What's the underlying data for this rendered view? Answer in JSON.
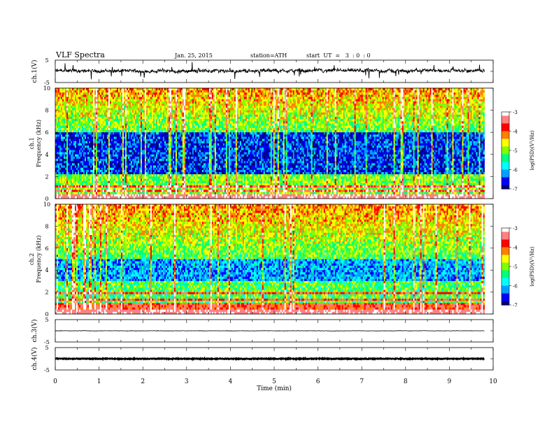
{
  "header": {
    "title": "VLF  Spectra",
    "date": "Jan. 25, 2015",
    "station": "station=ATH",
    "start": "start  UT  =   3  : 0  : 0"
  },
  "colors": {
    "spectrogram_scale": [
      "#000080",
      "#0000ff",
      "#00a0ff",
      "#00ffff",
      "#00ff80",
      "#80ff00",
      "#ffff00",
      "#ff8000",
      "#ff0000",
      "#ff8080",
      "#ffffff"
    ],
    "trace": "#000000"
  },
  "chart_data": [
    {
      "type": "line",
      "name_panel": "ch1-waveform",
      "ylabel": "ch.1(V)",
      "yticks": [
        "5",
        "-5"
      ],
      "ylim": [
        -5,
        5
      ],
      "xlim": [
        0,
        10
      ],
      "data_end_min": 9.8,
      "baseline": 0.2,
      "amplitude": 1.2
    },
    {
      "type": "heatmap",
      "name_panel": "ch1-spectrogram",
      "ylabel": "ch.1\nFrequency (kHz)",
      "ylabel_line1": "ch.1",
      "ylabel_line2": "Frequency (kHz)",
      "yticks": [
        "0",
        "2",
        "4",
        "6",
        "8",
        "10"
      ],
      "ylim": [
        0,
        10
      ],
      "xlim": [
        0,
        10
      ],
      "data_end_min": 9.8,
      "colorbar": {
        "label": "log(PSD)(V²/Hz)",
        "ticks": [
          "-3",
          "-4",
          "-5",
          "-6",
          "-7"
        ],
        "range": [
          -7,
          -3
        ]
      }
    },
    {
      "type": "heatmap",
      "name_panel": "ch2-spectrogram",
      "ylabel_line1": "ch.2",
      "ylabel_line2": "Frequency (kHz)",
      "yticks": [
        "0",
        "2",
        "4",
        "6",
        "8",
        "10"
      ],
      "ylim": [
        0,
        10
      ],
      "xlim": [
        0,
        10
      ],
      "data_end_min": 9.8,
      "colorbar": {
        "label": "log(PSD)(V²/Hz)",
        "ticks": [
          "-3",
          "-4",
          "-5",
          "-6",
          "-7"
        ],
        "range": [
          -7,
          -3
        ]
      }
    },
    {
      "type": "line",
      "name_panel": "ch3-waveform",
      "ylabel": "ch.3(V)",
      "yticks": [
        "5",
        "-5"
      ],
      "ylim": [
        -5,
        5
      ],
      "xlim": [
        0,
        10
      ],
      "data_end_min": 9.8,
      "baseline": 0.0,
      "amplitude": 0.15
    },
    {
      "type": "line",
      "name_panel": "ch4-waveform",
      "ylabel": "ch.4(V)",
      "yticks": [
        "5",
        "-5"
      ],
      "ylim": [
        -5,
        5
      ],
      "xlim": [
        0,
        10
      ],
      "data_end_min": 9.8,
      "baseline": 0.0,
      "amplitude": 0.35
    }
  ],
  "xaxis": {
    "label": "Time  (min)",
    "ticks": [
      "0",
      "1",
      "2",
      "3",
      "4",
      "5",
      "6",
      "7",
      "8",
      "9",
      "10"
    ]
  }
}
